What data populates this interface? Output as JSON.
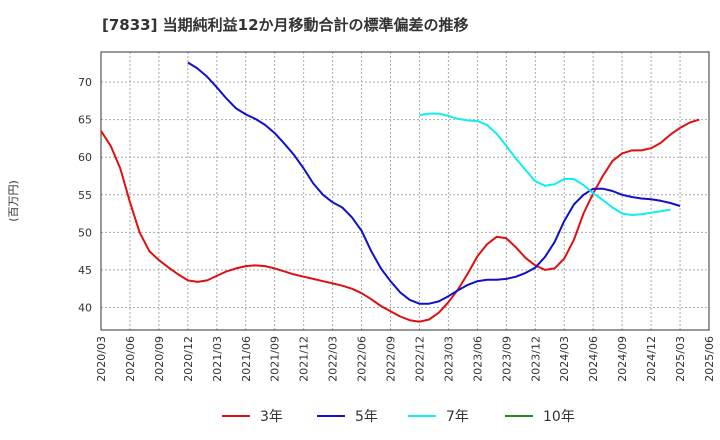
{
  "chart_data": {
    "type": "line",
    "title": "[7833]  当期純利益12か月移動合計の標準偏差の推移",
    "ylabel": "(百万円)",
    "xlabel": "",
    "ylim": [
      37,
      74
    ],
    "yticks": [
      40,
      45,
      50,
      55,
      60,
      65,
      70
    ],
    "xticks": [
      "2020/03",
      "2020/06",
      "2020/09",
      "2020/12",
      "2021/03",
      "2021/06",
      "2021/09",
      "2021/12",
      "2022/03",
      "2022/06",
      "2022/09",
      "2022/12",
      "2023/03",
      "2023/06",
      "2023/09",
      "2023/12",
      "2024/03",
      "2024/06",
      "2024/09",
      "2024/12",
      "2025/03",
      "2025/06"
    ],
    "grid": true,
    "legend_position": "bottom",
    "series": [
      {
        "name": "3年",
        "color": "#dd1111",
        "start": "2020/03",
        "values": [
          63.5,
          61.5,
          58.5,
          54.0,
          50.0,
          47.5,
          46.3,
          45.3,
          44.4,
          43.6,
          43.4,
          43.6,
          44.2,
          44.8,
          45.2,
          45.5,
          45.6,
          45.5,
          45.2,
          44.8,
          44.4,
          44.1,
          43.8,
          43.5,
          43.2,
          42.9,
          42.5,
          41.9,
          41.1,
          40.2,
          39.5,
          38.8,
          38.3,
          38.1,
          38.4,
          39.3,
          40.7,
          42.4,
          44.5,
          46.8,
          48.4,
          49.4,
          49.2,
          48.0,
          46.6,
          45.6,
          45.0,
          45.2,
          46.5,
          49.0,
          52.5,
          55.2,
          57.5,
          59.5,
          60.5,
          60.9,
          60.9,
          61.2,
          61.9,
          63.0,
          63.9,
          64.6,
          65.0
        ]
      },
      {
        "name": "5年",
        "color": "#1111cc",
        "start": "2020/12",
        "values": [
          72.6,
          71.8,
          70.7,
          69.3,
          67.8,
          66.5,
          65.7,
          65.1,
          64.3,
          63.2,
          61.8,
          60.3,
          58.5,
          56.5,
          55.0,
          54.0,
          53.3,
          52.0,
          50.2,
          47.5,
          45.2,
          43.5,
          42.0,
          41.0,
          40.5,
          40.5,
          40.8,
          41.5,
          42.3,
          43.0,
          43.5,
          43.7,
          43.7,
          43.8,
          44.1,
          44.6,
          45.3,
          46.7,
          48.7,
          51.5,
          53.7,
          55.0,
          55.8,
          55.8,
          55.5,
          55.0,
          54.7,
          54.5,
          54.4,
          54.2,
          53.9,
          53.5
        ]
      },
      {
        "name": "7年",
        "color": "#11eeee",
        "start": "2022/12",
        "values": [
          65.6,
          65.8,
          65.8,
          65.5,
          65.1,
          64.9,
          64.8,
          64.3,
          63.1,
          61.5,
          59.8,
          58.3,
          56.8,
          56.2,
          56.4,
          57.1,
          57.1,
          56.3,
          55.2,
          54.3,
          53.3,
          52.5,
          52.3,
          52.4,
          52.6,
          52.8,
          53.0
        ]
      },
      {
        "name": "10年",
        "color": "#228822",
        "start": "2020/03",
        "values": []
      }
    ]
  }
}
